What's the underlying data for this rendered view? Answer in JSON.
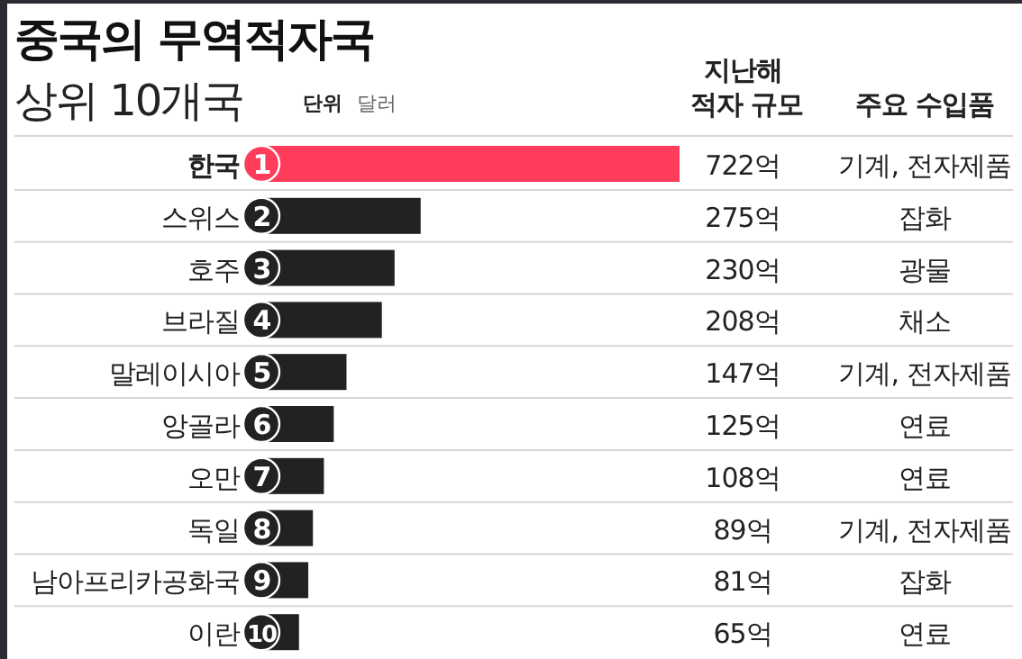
{
  "chart_data": {
    "type": "bar",
    "orientation": "horizontal",
    "title": "중국의 무역적자국",
    "subtitle": "상위 10개국",
    "categories": [
      "한국",
      "스위스",
      "호주",
      "브라질",
      "말레이시아",
      "앙골라",
      "오만",
      "독일",
      "남아프리카공화국",
      "이란"
    ],
    "values": [
      722,
      275,
      230,
      208,
      147,
      125,
      108,
      89,
      81,
      65
    ],
    "value_labels": [
      "722억",
      "275억",
      "230억",
      "208억",
      "147억",
      "125억",
      "108억",
      "89억",
      "81억",
      "65억"
    ],
    "colors": [
      "#ff3d5a",
      "#222222",
      "#222222",
      "#222222",
      "#222222",
      "#222222",
      "#222222",
      "#222222",
      "#222222",
      "#222222"
    ],
    "xlim": [
      0,
      722
    ],
    "annotations": [
      "단위",
      "달러",
      "지난해 적자 규모",
      "주요 수입품",
      "1",
      "2",
      "3",
      "4",
      "5",
      "6",
      "7",
      "8",
      "9",
      "10",
      "기계, 전자제품",
      "잡화",
      "광물",
      "채소",
      "기계, 전자제품",
      "연료",
      "연료",
      "기계, 전자제품",
      "잡화",
      "연료"
    ]
  }
}
